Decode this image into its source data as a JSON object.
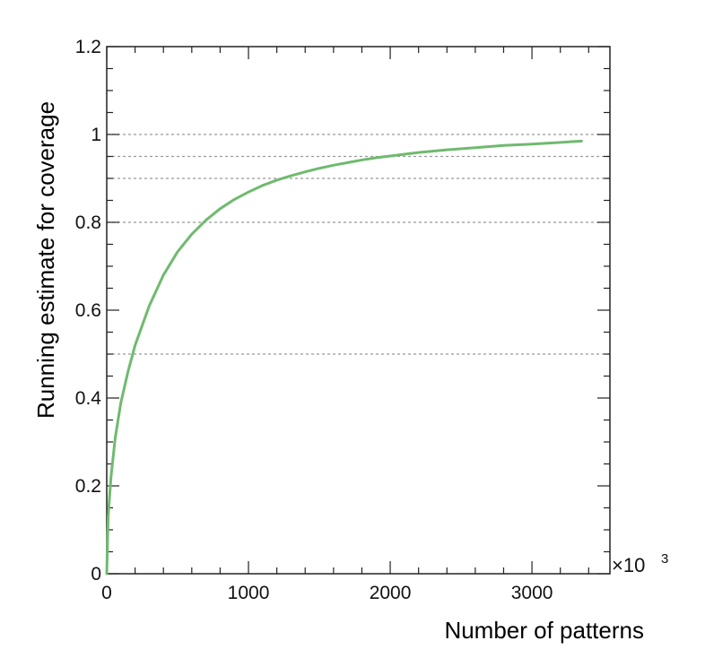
{
  "chart_data": {
    "type": "line",
    "title": "",
    "xlabel": "Number of patterns",
    "ylabel": "Running estimate for coverage",
    "x_multiplier_label": "×10",
    "x_multiplier_exponent": "3",
    "xlim": [
      0,
      3550
    ],
    "ylim": [
      0,
      1.2
    ],
    "x_ticks": [
      0,
      1000,
      2000,
      3000
    ],
    "x_tick_labels": [
      "0",
      "1000",
      "2000",
      "3000"
    ],
    "y_ticks": [
      0,
      0.2,
      0.4,
      0.6,
      0.8,
      1.0,
      1.2
    ],
    "y_tick_labels": [
      "0",
      "0.2",
      "0.4",
      "0.6",
      "0.8",
      "1",
      "1.2"
    ],
    "reference_lines_y": [
      0.5,
      0.8,
      0.9,
      0.95,
      1.0
    ],
    "grid": false,
    "line_color": "#6fba6f",
    "reference_line_color": "#999999",
    "series": [
      {
        "x": [
          0,
          10,
          30,
          60,
          100,
          150,
          200,
          300,
          400,
          500,
          600,
          700,
          800,
          900,
          1000,
          1100,
          1200,
          1300,
          1400,
          1500,
          1600,
          1700,
          1800,
          1900,
          2000,
          2200,
          2400,
          2600,
          2800,
          3000,
          3200,
          3350
        ],
        "y": [
          0.0,
          0.13,
          0.22,
          0.31,
          0.39,
          0.46,
          0.52,
          0.61,
          0.68,
          0.733,
          0.773,
          0.805,
          0.831,
          0.852,
          0.869,
          0.884,
          0.896,
          0.906,
          0.915,
          0.923,
          0.93,
          0.936,
          0.942,
          0.947,
          0.951,
          0.959,
          0.965,
          0.97,
          0.975,
          0.978,
          0.982,
          0.985
        ]
      }
    ]
  }
}
